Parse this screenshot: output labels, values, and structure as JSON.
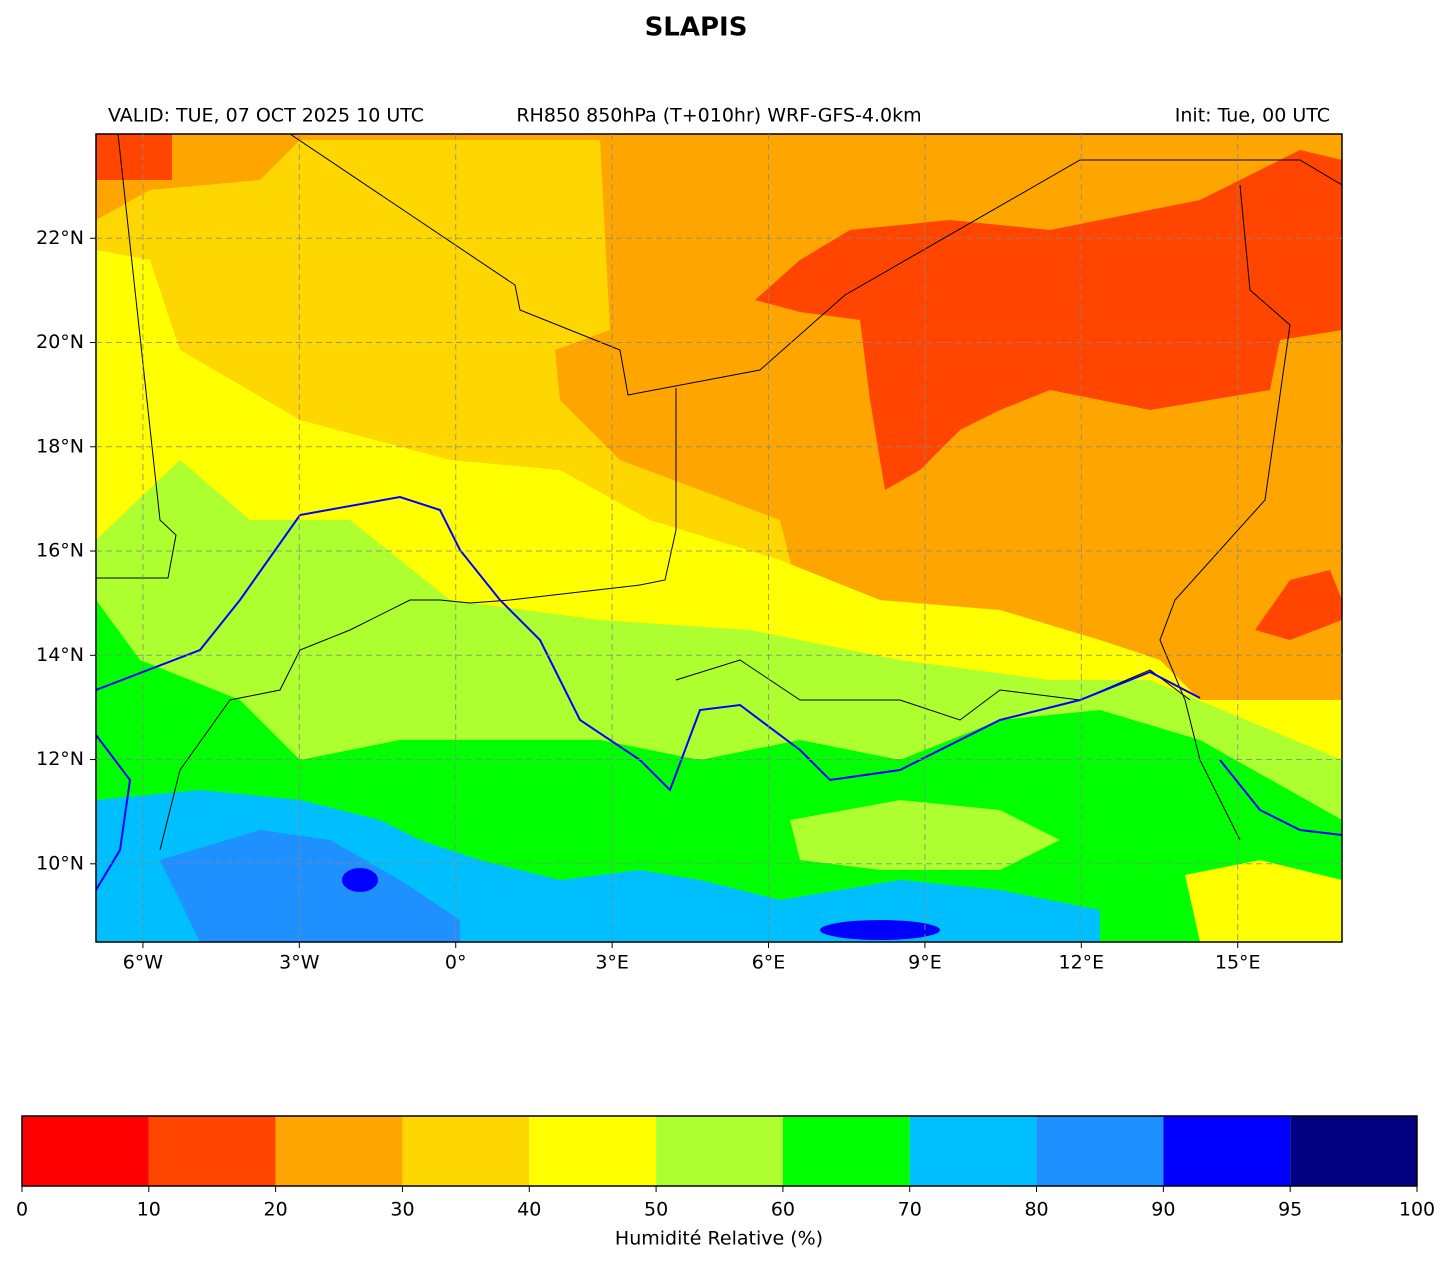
{
  "chart_data": {
    "type": "map",
    "title": "SLAPIS",
    "subtitle_left": "VALID: TUE, 07 OCT 2025 10 UTC",
    "subtitle_center": "RH850 850hPa (T+010hr) WRF-GFS-4.0km",
    "subtitle_right": "Init: Tue, 00 UTC",
    "xlim": [
      -6.9,
      17
    ],
    "ylim": [
      8.5,
      24
    ],
    "xticks": [
      {
        "value": -6,
        "label": "6°W"
      },
      {
        "value": -3,
        "label": "3°W"
      },
      {
        "value": 0,
        "label": "0°"
      },
      {
        "value": 3,
        "label": "3°E"
      },
      {
        "value": 6,
        "label": "6°E"
      },
      {
        "value": 9,
        "label": "9°E"
      },
      {
        "value": 12,
        "label": "12°E"
      },
      {
        "value": 15,
        "label": "15°E"
      }
    ],
    "yticks": [
      {
        "value": 10,
        "label": "10°N"
      },
      {
        "value": 12,
        "label": "12°N"
      },
      {
        "value": 14,
        "label": "14°N"
      },
      {
        "value": 16,
        "label": "16°N"
      },
      {
        "value": 18,
        "label": "18°N"
      },
      {
        "value": 20,
        "label": "20°N"
      },
      {
        "value": 22,
        "label": "22°N"
      }
    ],
    "grid": true,
    "colorbar": {
      "label": "Humidité Relative (%)",
      "bounds": [
        0,
        10,
        20,
        30,
        40,
        50,
        60,
        70,
        80,
        90,
        95,
        100
      ],
      "colors": [
        "#ff0000",
        "#ff4500",
        "#ffa500",
        "#ffd700",
        "#ffff00",
        "#adff2f",
        "#00ff00",
        "#00bfff",
        "#1e90ff",
        "#0000ff",
        "#000080"
      ]
    }
  }
}
